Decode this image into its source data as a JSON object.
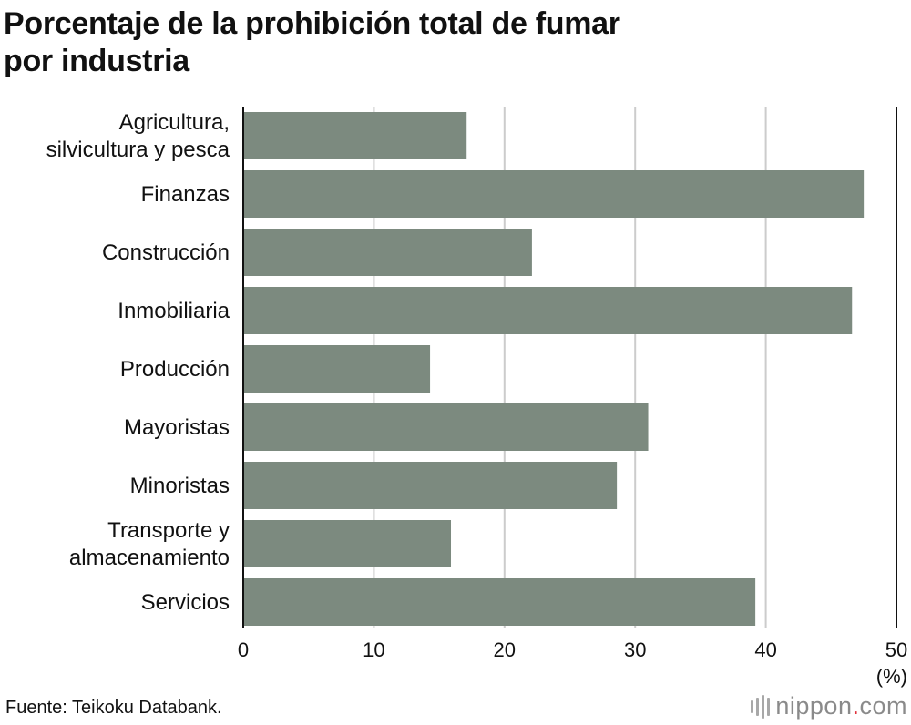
{
  "title": {
    "line1": "Porcentaje de la prohibición total de fumar",
    "line2": "por industria"
  },
  "source": "Fuente: Teikoku Databank.",
  "brand": {
    "name": "nippon",
    "dot": ".",
    "suffix": "com"
  },
  "colors": {
    "bar": "#7c8a7f",
    "grid": "#cccccc",
    "axis": "#111111",
    "text": "#111111"
  },
  "chart_data": {
    "type": "bar",
    "orientation": "horizontal",
    "title": "Porcentaje de la prohibición total de fumar por industria",
    "categories": [
      [
        "Agricultura,",
        "silvicultura y pesca"
      ],
      [
        "Finanzas"
      ],
      [
        "Construcción"
      ],
      [
        "Inmobiliaria"
      ],
      [
        "Producción"
      ],
      [
        "Mayoristas"
      ],
      [
        "Minoristas"
      ],
      [
        "Transporte y",
        "almacenamiento"
      ],
      [
        "Servicios"
      ]
    ],
    "values": [
      17.1,
      47.5,
      22.1,
      46.6,
      14.3,
      31.0,
      28.6,
      15.9,
      39.2
    ],
    "xlim": [
      0,
      50
    ],
    "xticks": [
      0,
      10,
      20,
      30,
      40,
      50
    ],
    "xlabel": "(%)",
    "ylabel": "",
    "grid": true
  }
}
